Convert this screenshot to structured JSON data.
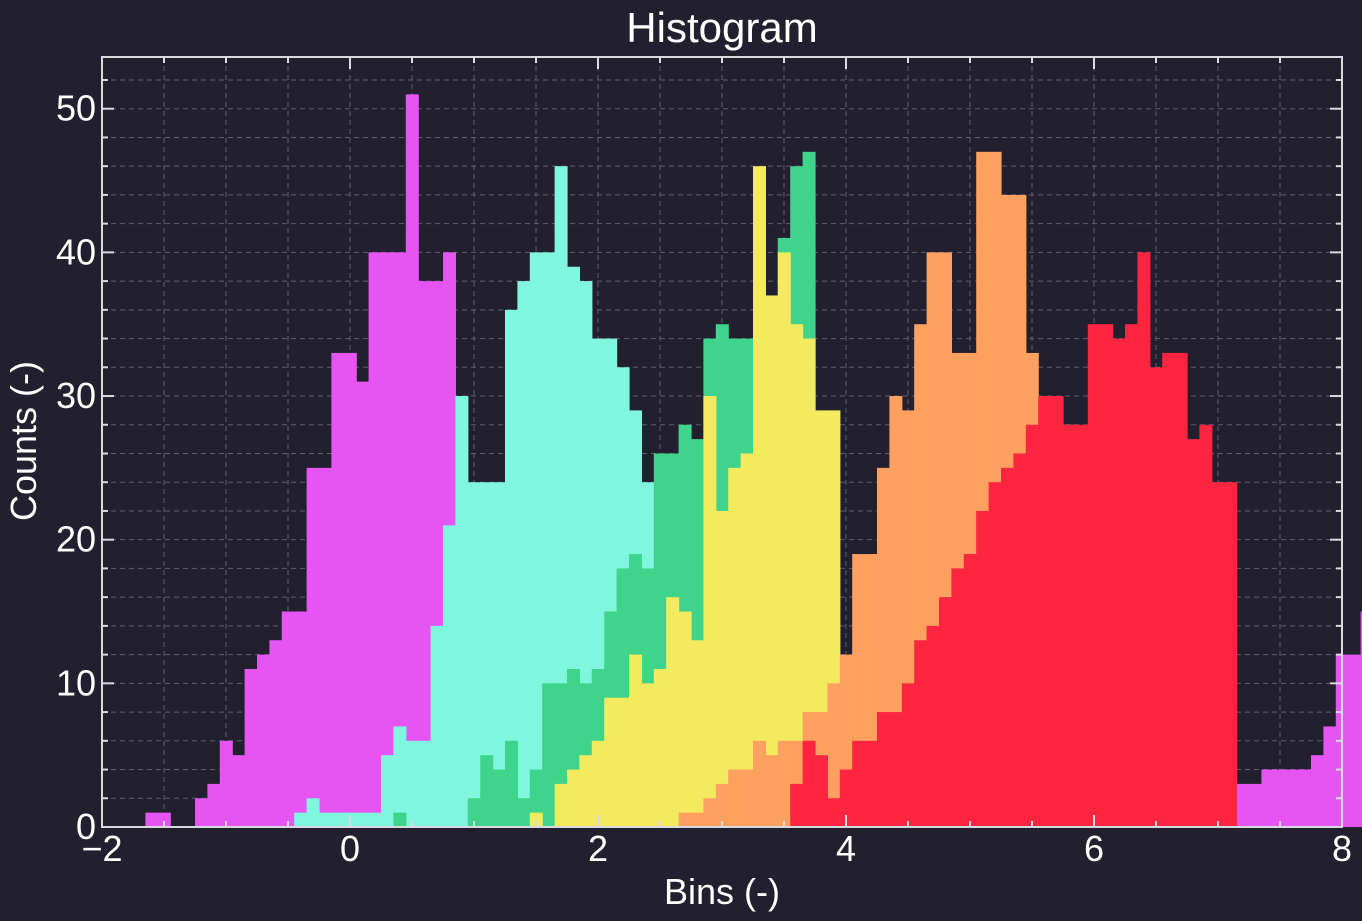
{
  "chart_data": {
    "type": "bar",
    "title": "Histogram",
    "xlabel": "Bins (-)",
    "ylabel": "Counts (-)",
    "xlim": [
      -2,
      8
    ],
    "ylim": [
      0,
      53.6
    ],
    "x_ticks": [
      -2,
      0,
      2,
      4,
      6,
      8
    ],
    "x_tick_labels": [
      "−2",
      "0",
      "2",
      "4",
      "6",
      "8"
    ],
    "y_ticks": [
      0,
      10,
      20,
      30,
      40,
      50
    ],
    "y_tick_labels": [
      "0",
      "10",
      "20",
      "30",
      "40",
      "50"
    ],
    "grid": true,
    "bin_width": 0.1,
    "background": "#221f2f",
    "axis_color": "#d9d9e0",
    "series": [
      {
        "color": "#e655f3",
        "x0": -1.65,
        "counts": [
          1,
          1,
          0,
          0,
          2,
          3,
          6,
          5,
          11,
          12,
          13,
          15,
          15,
          25,
          25,
          33,
          33,
          31,
          40,
          40,
          40,
          51,
          38,
          38,
          40,
          7,
          7,
          5,
          3,
          3,
          1,
          0,
          0,
          0,
          0,
          0,
          0,
          0,
          0,
          0,
          0,
          0,
          0,
          0,
          0,
          0,
          0,
          0,
          0,
          0,
          0,
          0,
          0,
          0,
          0,
          0,
          0,
          0,
          0,
          0,
          0,
          0,
          0,
          0,
          0,
          0,
          0,
          0,
          0,
          0,
          0,
          0,
          0,
          0,
          0,
          0,
          0,
          0,
          0,
          0,
          0,
          0,
          0,
          0,
          0,
          0,
          0,
          0,
          3,
          3,
          4,
          4,
          4,
          4,
          5,
          7,
          12,
          12,
          15,
          19,
          23,
          25,
          23,
          25,
          23,
          25,
          28,
          25,
          23,
          24,
          31,
          28,
          32,
          38,
          33,
          38,
          39,
          37,
          39,
          37,
          34,
          26,
          27,
          20,
          25,
          27,
          23,
          10,
          12,
          7,
          1,
          3,
          0,
          2,
          1,
          1,
          1
        ]
      },
      {
        "color": "#80f6df",
        "x0": -0.45,
        "counts": [
          1,
          2,
          1,
          1,
          1,
          1,
          1,
          5,
          7,
          6,
          6,
          14,
          21,
          30,
          24,
          24,
          24,
          36,
          38,
          40,
          40,
          46,
          39,
          38,
          34,
          34,
          32,
          29,
          24,
          20,
          21,
          20,
          20,
          22,
          25,
          10,
          2,
          2,
          0,
          0,
          0,
          0,
          0,
          0,
          0,
          0,
          0,
          0,
          0,
          0,
          0,
          0,
          0,
          0,
          0,
          0,
          0,
          0,
          0,
          0,
          0,
          0,
          0,
          0,
          0,
          0,
          0,
          0,
          0,
          0,
          0,
          0,
          0,
          0,
          0,
          0,
          0,
          0,
          0,
          0,
          0,
          0,
          0,
          0,
          0,
          0,
          0,
          0,
          0,
          0,
          0,
          0,
          0
        ]
      },
      {
        "color": "#3fd48b",
        "x0": 0.35,
        "counts": [
          1,
          0,
          0,
          0,
          0,
          0,
          2,
          5,
          4,
          6,
          2,
          4,
          10,
          10,
          11,
          10,
          11,
          15,
          18,
          19,
          18,
          26,
          26,
          28,
          27,
          34,
          35,
          34,
          34,
          35,
          25,
          41,
          46,
          47,
          26,
          12,
          9,
          0,
          0,
          0,
          0,
          0,
          0,
          0,
          0,
          0,
          0,
          0,
          0,
          0,
          0,
          0,
          0,
          0,
          0,
          0,
          0,
          0,
          0,
          0,
          0,
          0,
          0,
          0,
          0,
          0,
          0,
          0,
          0,
          0,
          0,
          0,
          0,
          0,
          0,
          0,
          0,
          0,
          0,
          0,
          0,
          0,
          0,
          0,
          0,
          0,
          0,
          0,
          0,
          0,
          0,
          0,
          0
        ]
      },
      {
        "color": "#f4ea5f",
        "x0": 1.45,
        "counts": [
          1,
          0,
          3,
          4,
          5,
          6,
          9,
          9,
          12,
          10,
          11,
          16,
          15,
          13,
          30,
          22,
          25,
          26,
          46,
          37,
          40,
          35,
          34,
          29,
          29,
          0,
          0,
          0,
          0,
          0,
          0,
          0,
          0,
          0,
          0,
          0,
          0,
          0,
          0,
          0,
          0,
          0,
          0,
          0,
          0,
          0,
          0,
          0,
          0,
          0,
          0,
          0,
          0,
          0,
          0,
          0,
          0,
          0,
          0,
          0,
          0,
          0,
          0,
          0,
          0,
          0,
          0,
          0,
          0,
          0,
          0,
          0,
          0,
          0,
          0,
          0,
          0,
          0,
          0,
          0,
          0,
          0,
          0,
          0,
          0,
          0,
          0,
          0,
          0,
          0,
          0,
          0,
          0
        ]
      },
      {
        "color": "#fea05f",
        "x0": 2.65,
        "counts": [
          1,
          1,
          2,
          3,
          4,
          4,
          6,
          5,
          6,
          6,
          8,
          8,
          10,
          12,
          19,
          19,
          25,
          30,
          29,
          35,
          40,
          40,
          33,
          33,
          47,
          47,
          44,
          44,
          33,
          30,
          28,
          28,
          25,
          23,
          23,
          24,
          15,
          15,
          10,
          10
        ]
      },
      {
        "color": "#fd2540",
        "x0": 3.55,
        "counts": [
          3,
          6,
          5,
          2,
          4,
          6,
          6,
          8,
          8,
          10,
          13,
          14,
          16,
          18,
          19,
          22,
          24,
          25,
          26,
          28,
          30,
          30,
          28,
          28,
          35,
          35,
          34,
          35,
          40,
          32,
          33,
          33,
          27,
          28,
          24,
          24
        ]
      }
    ]
  }
}
